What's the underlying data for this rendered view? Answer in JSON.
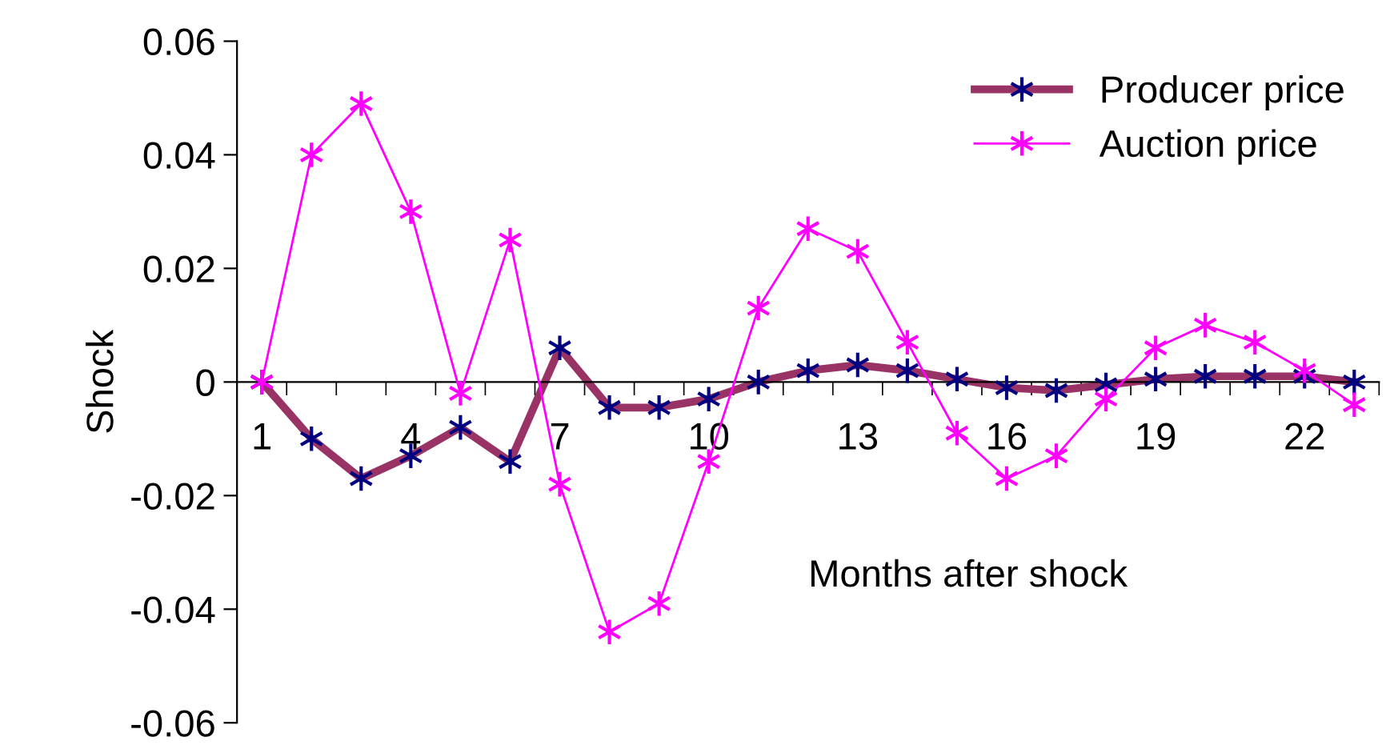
{
  "chart_data": {
    "type": "line",
    "xlabel": "Months after shock",
    "ylabel": "Shock",
    "categories": [
      "1",
      null,
      null,
      "4",
      null,
      null,
      "7",
      null,
      null,
      "10",
      null,
      null,
      "13",
      null,
      null,
      "16",
      null,
      null,
      "19",
      null,
      null,
      "22",
      null
    ],
    "series": [
      {
        "name": "Producer price",
        "color": "#993366",
        "colors": [
          "#000080",
          "#000080",
          "#000080",
          "#000080",
          "#000080",
          "#000080",
          "#000080",
          "#000080",
          "#000080",
          "#000080",
          "#000080",
          "#000080",
          "#000080",
          "#000080",
          "#000080",
          "#000080",
          "#000080",
          "#000080",
          "#000080",
          "#000080",
          "#000080",
          "#000080",
          "#000080"
        ],
        "values": [
          0,
          -0.01,
          -0.017,
          -0.013,
          -0.008,
          -0.014,
          0.006,
          -0.0045,
          -0.0045,
          -0.003,
          0,
          0.002,
          0.003,
          0.002,
          0.0005,
          -0.001,
          -0.0015,
          -0.0005,
          0.0005,
          0.001,
          0.001,
          0.001,
          0
        ]
      },
      {
        "name": "Auction price",
        "color": "#ff00ff",
        "values": [
          0,
          0.04,
          0.049,
          0.03,
          -0.002,
          0.025,
          -0.018,
          -0.044,
          -0.039,
          -0.014,
          0.013,
          0.027,
          0.023,
          0.007,
          -0.009,
          -0.017,
          -0.013,
          -0.003,
          0.006,
          0.01,
          0.007,
          0.002,
          -0.004
        ]
      }
    ],
    "ylim": [
      -0.06,
      0.06
    ],
    "yticks": [
      -0.06,
      -0.04,
      -0.02,
      0,
      0.02,
      0.04,
      0.06
    ],
    "grid": false,
    "legend": "top right",
    "marker": "cross",
    "line_style": "solid"
  }
}
